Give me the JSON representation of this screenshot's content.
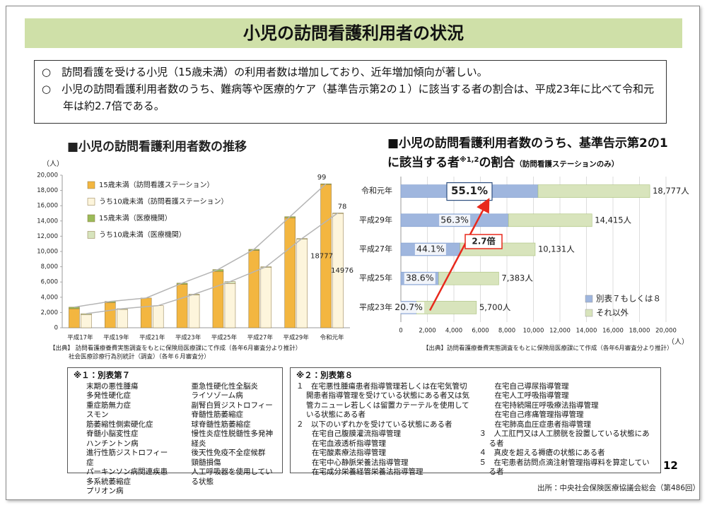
{
  "title": "小児の訪問看護利用者の状況",
  "bullets": [
    "○　訪問看護を受ける小児（15歳未満）の利用者数は増加しており、近年増加傾向が著しい。",
    "○　小児の訪問看護利用者数のうち、難病等や医療的ケア（基準告示第2の１）に該当する者の割合は、平成23年に比べて令和元年は約2.7倍である。"
  ],
  "chart_data": [
    {
      "type": "bar",
      "title": "■小児の訪問看護利用者数の推移",
      "ylabel": "（人）",
      "categories": [
        "平成17年",
        "平成19年",
        "平成21年",
        "平成23年",
        "平成25年",
        "平成27年",
        "平成29年",
        "令和元年"
      ],
      "series": [
        {
          "name": "15歳未満（訪問看護ステーション）",
          "color": "#f3b640",
          "values": [
            2500,
            3300,
            3900,
            5700,
            7383,
            10131,
            14415,
            18777
          ]
        },
        {
          "name": "うち10歳未満（訪問看護ステーション）",
          "color": "#fdf5dc",
          "values": [
            1700,
            2400,
            2900,
            4300,
            5800,
            7900,
            11600,
            14976
          ]
        },
        {
          "name": "15歳未満（医療機関）",
          "color": "#9bbb59",
          "values": [
            200,
            150,
            0,
            150,
            250,
            150,
            150,
            99
          ]
        },
        {
          "name": "うち10歳未満（医療機関）",
          "color": "#d7e4bd",
          "values": [
            150,
            100,
            0,
            100,
            250,
            100,
            100,
            78
          ]
        }
      ],
      "ylim": [
        0,
        20000
      ],
      "yticks": [
        0,
        {
          "value": 2000,
          "label": "2,000"
        },
        {
          "value": 4000,
          "label": "4,000"
        },
        {
          "value": 6000,
          "label": "6,000"
        },
        {
          "value": 8000,
          "label": "8,000"
        },
        {
          "value": 10000,
          "label": "10,000"
        },
        {
          "value": 12000,
          "label": "12,000"
        },
        {
          "value": 14000,
          "label": "14,000"
        },
        {
          "value": 16000,
          "label": "16,000"
        },
        {
          "value": 18000,
          "label": "18,000"
        },
        {
          "value": 20000,
          "label": "20,000"
        }
      ],
      "grid": false,
      "sources": [
        "【出典】 訪問看護療養費実態調査をもとに保険局医療課にて作成（各年6月審査分より推計）",
        "社会医療診療行為別統計（調査）（各年６月審査分）"
      ]
    },
    {
      "type": "hbar",
      "title": "■小児の訪問看護利用者数のうち、基準告示第2の1に該当する者",
      "title_note": "※1,2",
      "title_suffix": "の割合",
      "subtitle": "（訪問看護ステーションのみ）",
      "xlabel": "（人）",
      "categories": [
        "令和元年",
        "平成29年",
        "平成27年",
        "平成25年",
        "平成23年"
      ],
      "series": [
        {
          "name": "別表７もしくは８",
          "color": "#9fb6de",
          "values": [
            10346,
            8116,
            4468,
            2850,
            1180
          ]
        },
        {
          "name": "それ以外",
          "color": "#d8e4bc",
          "values": [
            8431,
            6299,
            5663,
            4533,
            4520
          ]
        }
      ],
      "totals": [
        {
          "value": 18777,
          "label": "18,777人"
        },
        {
          "value": 14415,
          "label": "14,415人"
        },
        {
          "value": 10131,
          "label": "10,131人"
        },
        {
          "value": 7383,
          "label": "7,383人"
        },
        {
          "value": 5700,
          "label": "5,700人"
        }
      ],
      "shares": [
        {
          "value": 55.1,
          "label": "55.1%"
        },
        {
          "value": 56.3,
          "label": "56.3%"
        },
        {
          "value": 44.1,
          "label": "44.1%"
        },
        {
          "value": 38.6,
          "label": "38.6%"
        },
        {
          "value": 20.7,
          "label": "20.7%"
        }
      ],
      "annotation": "2.7倍",
      "xlim": [
        0,
        20000
      ],
      "xticks": [
        0,
        {
          "value": 2000,
          "label": "2,000"
        },
        {
          "value": 4000,
          "label": "4,000"
        },
        {
          "value": 6000,
          "label": "6,000"
        },
        {
          "value": 8000,
          "label": "8,000"
        },
        {
          "value": 10000,
          "label": "10,000"
        },
        {
          "value": 12000,
          "label": "12,000"
        },
        {
          "value": 14000,
          "label": "14,000"
        },
        {
          "value": 16000,
          "label": "16,000"
        },
        {
          "value": 18000,
          "label": "18,000"
        },
        {
          "value": 20000,
          "label": "20,000"
        }
      ],
      "grid": true,
      "sources": [
        "【出典】訪問看護療養費実態調査をもとに保険局医療課にて作成（各年6月審査分より推計）"
      ]
    }
  ],
  "notes": [
    {
      "heading": "※１：別表第７",
      "items": [
        "末期の悪性腫瘍",
        "多発性硬化症",
        "重症筋無力症",
        "スモン",
        "筋萎縮性側索硬化症",
        "脊髄小脳変性症",
        "ハンチントン病",
        "進行性筋ジストロフィー症",
        "パーキンソン病関連疾患",
        "多系統萎縮症",
        "プリオン病",
        "亜急性硬化性全脳炎",
        "ライソゾーム病",
        "副腎白質ジストロフィー",
        "脊髄性筋萎縮症",
        "球脊髄性筋萎縮症",
        "慢性炎症性脱髄性多発神経炎",
        "後天性免疫不全症候群",
        "頸髄損傷",
        "人工呼吸器を使用している状態"
      ]
    },
    {
      "heading": "※２：別表第８",
      "items": [
        "１　在宅悪性腫瘍患者指導管理若しくは在宅気管切開患者指導管理を受けている状態にある者又は気管カニューレ若しくは留置カテーテルを使用している状態にある者",
        "２　以下のいずれかを受けている状態にある者",
        "在宅自己腹膜灌流指導管理",
        "在宅血液透析指導管理",
        "在宅酸素療法指導管理",
        "在宅中心静脈栄養法指導管理",
        "在宅成分栄養経管栄養法指導管理",
        "在宅自己導尿指導管理",
        "在宅人工呼吸指導管理",
        "在宅持続陽圧呼吸療法指導管理",
        "在宅自己疼痛管理指導管理",
        "在宅肺高血圧症患者指導管理",
        "３　人工肛門又は人工膀胱を設置している状態にある者",
        "４　真皮を超える褥瘡の状態にある者",
        "５　在宅患者訪問点滴注射管理指導料を算定している者"
      ]
    }
  ],
  "page_number": "12",
  "footer": "出所：中央社会保険医療協議会総会（第486回）"
}
